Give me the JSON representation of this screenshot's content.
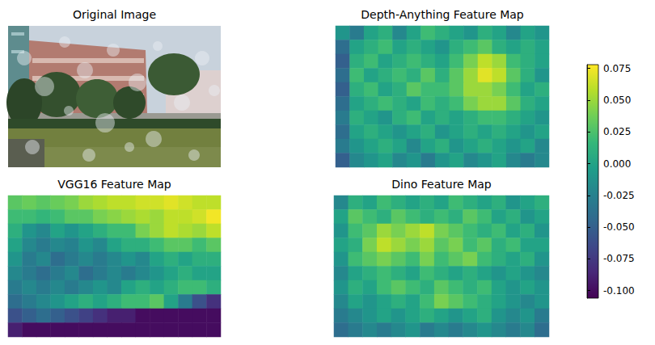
{
  "chart_data": [
    {
      "type": "image",
      "title": "Original Image",
      "tick_labels": false
    },
    {
      "type": "heatmap",
      "title": "Depth-Anything Feature Map",
      "tick_labels": false,
      "cells": [
        [
          -0.01,
          -0.03,
          0.0,
          0.01,
          -0.02,
          0.0,
          0.02,
          0.01,
          0.0,
          -0.01,
          0.01,
          0.0,
          -0.02,
          0.0,
          -0.01
        ],
        [
          -0.04,
          0.0,
          0.01,
          0.02,
          0.0,
          0.01,
          0.0,
          -0.01,
          0.01,
          0.02,
          0.03,
          0.01,
          0.0,
          0.01,
          0.0
        ],
        [
          -0.05,
          0.01,
          0.02,
          0.0,
          0.01,
          0.02,
          0.01,
          0.0,
          0.02,
          0.04,
          0.06,
          0.05,
          0.02,
          0.01,
          0.0
        ],
        [
          -0.04,
          0.02,
          0.0,
          0.01,
          0.02,
          0.01,
          0.03,
          0.01,
          0.03,
          0.05,
          0.07,
          0.06,
          0.03,
          0.01,
          -0.01
        ],
        [
          -0.05,
          0.01,
          0.02,
          0.0,
          0.01,
          0.03,
          0.02,
          0.02,
          0.03,
          0.05,
          0.05,
          0.04,
          0.02,
          0.0,
          0.01
        ],
        [
          -0.04,
          0.0,
          0.01,
          0.02,
          0.01,
          0.0,
          0.02,
          0.01,
          0.02,
          0.04,
          0.05,
          0.05,
          0.03,
          0.01,
          0.0
        ],
        [
          -0.03,
          0.01,
          0.0,
          -0.01,
          0.01,
          0.02,
          0.0,
          0.01,
          0.0,
          0.01,
          0.02,
          0.02,
          0.01,
          0.0,
          -0.01
        ],
        [
          -0.04,
          0.0,
          0.01,
          0.0,
          -0.01,
          0.0,
          0.01,
          -0.01,
          0.0,
          0.01,
          0.0,
          0.01,
          0.0,
          -0.01,
          0.0
        ],
        [
          -0.03,
          -0.01,
          0.0,
          0.01,
          0.0,
          -0.02,
          0.0,
          0.01,
          -0.01,
          0.0,
          0.01,
          0.0,
          -0.01,
          0.0,
          -0.02
        ],
        [
          -0.05,
          -0.02,
          -0.01,
          0.0,
          -0.02,
          -0.01,
          -0.03,
          -0.01,
          0.0,
          -0.02,
          -0.01,
          0.0,
          -0.02,
          -0.03,
          -0.02
        ]
      ]
    },
    {
      "type": "heatmap",
      "title": "VGG16 Feature Map",
      "tick_labels": false,
      "cells": [
        [
          0.03,
          0.035,
          0.03,
          0.035,
          0.04,
          0.05,
          0.055,
          0.06,
          0.06,
          0.065,
          0.065,
          0.07,
          0.065,
          0.06,
          0.06
        ],
        [
          0.02,
          0.02,
          0.015,
          0.02,
          0.03,
          0.03,
          0.04,
          0.045,
          0.05,
          0.055,
          0.05,
          0.06,
          0.06,
          0.065,
          0.075
        ],
        [
          0.01,
          -0.01,
          -0.02,
          0.0,
          -0.01,
          0.0,
          0.01,
          0.02,
          0.02,
          0.04,
          0.05,
          0.06,
          0.055,
          0.05,
          0.06
        ],
        [
          0.0,
          -0.02,
          -0.03,
          -0.02,
          -0.025,
          -0.01,
          -0.02,
          0.0,
          0.01,
          0.01,
          0.02,
          0.03,
          0.03,
          0.02,
          0.03
        ],
        [
          -0.01,
          -0.03,
          -0.02,
          -0.04,
          -0.03,
          -0.02,
          -0.03,
          -0.02,
          -0.01,
          -0.02,
          0.0,
          0.01,
          0.0,
          0.01,
          0.01
        ],
        [
          -0.02,
          -0.03,
          -0.04,
          -0.03,
          -0.02,
          -0.04,
          -0.03,
          -0.02,
          -0.03,
          -0.02,
          -0.01,
          0.0,
          0.01,
          0.0,
          0.0
        ],
        [
          -0.03,
          -0.02,
          -0.03,
          -0.02,
          -0.03,
          -0.02,
          -0.01,
          -0.02,
          0.0,
          0.01,
          0.0,
          0.01,
          0.02,
          0.02,
          0.01
        ],
        [
          -0.04,
          -0.03,
          -0.02,
          -0.01,
          0.0,
          0.01,
          0.0,
          0.01,
          0.02,
          0.02,
          0.03,
          0.0,
          -0.03,
          -0.06,
          -0.08
        ],
        [
          -0.06,
          -0.05,
          -0.04,
          -0.05,
          -0.06,
          -0.07,
          -0.08,
          -0.09,
          -0.09,
          -0.1,
          -0.1,
          -0.1,
          -0.1,
          -0.1,
          -0.1
        ],
        [
          -0.09,
          -0.1,
          -0.1,
          -0.1,
          -0.1,
          -0.1,
          -0.1,
          -0.1,
          -0.1,
          -0.1,
          -0.1,
          -0.1,
          -0.1,
          -0.1,
          -0.1
        ]
      ]
    },
    {
      "type": "heatmap",
      "title": "Dino Feature Map",
      "tick_labels": false,
      "cells": [
        [
          -0.02,
          0.01,
          0.0,
          0.02,
          0.01,
          0.0,
          0.01,
          0.0,
          0.02,
          0.01,
          0.0,
          0.01,
          -0.01,
          0.0,
          0.01
        ],
        [
          0.0,
          0.03,
          0.02,
          0.01,
          0.03,
          0.02,
          0.01,
          0.02,
          0.01,
          0.03,
          0.02,
          0.0,
          0.01,
          -0.01,
          0.0
        ],
        [
          -0.01,
          0.02,
          0.03,
          0.05,
          0.04,
          0.05,
          0.06,
          0.04,
          0.03,
          0.02,
          0.01,
          0.02,
          0.0,
          0.01,
          -0.01
        ],
        [
          0.0,
          0.01,
          0.04,
          0.06,
          0.05,
          0.04,
          0.05,
          0.03,
          0.04,
          0.02,
          0.03,
          0.01,
          0.02,
          0.0,
          0.0
        ],
        [
          -0.01,
          0.02,
          0.03,
          0.04,
          0.03,
          0.02,
          0.04,
          0.02,
          0.03,
          0.04,
          0.02,
          0.01,
          0.0,
          0.01,
          -0.01
        ],
        [
          -0.02,
          0.0,
          0.01,
          0.02,
          0.01,
          0.0,
          0.02,
          0.01,
          0.0,
          0.01,
          0.0,
          -0.01,
          0.0,
          -0.01,
          -0.02
        ],
        [
          -0.01,
          0.01,
          0.0,
          0.02,
          0.03,
          0.02,
          0.01,
          0.03,
          0.02,
          0.01,
          0.02,
          0.0,
          -0.01,
          0.0,
          -0.01
        ],
        [
          -0.02,
          0.0,
          -0.01,
          0.0,
          0.01,
          0.0,
          0.02,
          0.04,
          0.03,
          0.02,
          0.01,
          0.0,
          -0.01,
          -0.02,
          -0.01
        ],
        [
          -0.03,
          -0.02,
          -0.01,
          0.0,
          -0.01,
          0.0,
          0.01,
          0.0,
          -0.01,
          0.0,
          0.01,
          -0.01,
          -0.02,
          -0.01,
          -0.03
        ],
        [
          -0.04,
          -0.03,
          -0.02,
          -0.03,
          -0.02,
          -0.01,
          -0.03,
          -0.02,
          -0.03,
          -0.02,
          -0.01,
          -0.02,
          -0.03,
          -0.02,
          -0.04
        ]
      ]
    }
  ],
  "colorbar": {
    "range": [
      -0.106,
      0.078
    ],
    "ticks": [
      {
        "value": -0.1,
        "label": "-0.100"
      },
      -0.075,
      {
        "value": -0.05,
        "label": "-0.050"
      },
      -0.025,
      {
        "value": 0,
        "label": "0.000"
      },
      0.025,
      {
        "value": 0.05,
        "label": "0.050"
      },
      0.075
    ]
  }
}
